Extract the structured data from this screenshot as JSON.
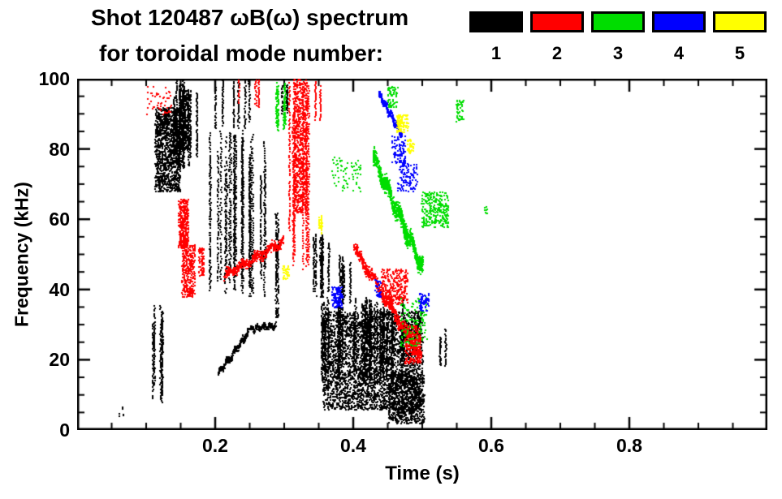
{
  "header": {
    "title_line1": "Shot 120487 ωB(ω) spectrum",
    "title_line2": "for toroidal mode number:"
  },
  "chart_data": {
    "type": "scatter",
    "title": "Shot 120487 ωB(ω) spectrum for toroidal mode number",
    "xlabel": "Time (s)",
    "ylabel": "Frequency (kHz)",
    "xlim": [
      0,
      1.0
    ],
    "ylim": [
      0,
      100
    ],
    "x_major_ticks": [
      0.2,
      0.4,
      0.6,
      0.8
    ],
    "x_tick_labels": [
      "0.2",
      "0.4",
      "0.6",
      "0.8"
    ],
    "x_minor_step": 0.05,
    "y_major_ticks": [
      0,
      20,
      40,
      60,
      80,
      100
    ],
    "y_tick_labels": [
      "0",
      "20",
      "40",
      "60",
      "80",
      "100"
    ],
    "y_minor_step": 5,
    "grid": false,
    "legend_position": "top-right",
    "series": [
      {
        "label": "1",
        "name": "toroidal mode n=1",
        "color": "#000000",
        "clusters": [
          {
            "type": "blob",
            "t": [
              0.058,
              0.066
            ],
            "f": [
              4,
              7
            ],
            "n": 6
          },
          {
            "type": "vstreaks",
            "t": [
              0.106,
              0.124
            ],
            "f": [
              8,
              36
            ],
            "lines": 5,
            "n": 300
          },
          {
            "type": "blob",
            "t": [
              0.112,
              0.148
            ],
            "f": [
              68,
              92
            ],
            "n": 1100
          },
          {
            "type": "vstreaks",
            "t": [
              0.138,
              0.178
            ],
            "f": [
              74,
              100
            ],
            "lines": 10,
            "n": 650
          },
          {
            "type": "blob",
            "t": [
              0.148,
              0.162
            ],
            "f": [
              80,
              97
            ],
            "n": 300
          },
          {
            "type": "vstreaks",
            "t": [
              0.19,
              0.272
            ],
            "f": [
              38,
              86
            ],
            "lines": 24,
            "n": 1600
          },
          {
            "type": "vstreaks",
            "t": [
              0.198,
              0.25
            ],
            "f": [
              86,
              100
            ],
            "lines": 6,
            "n": 220
          },
          {
            "type": "trace",
            "from": [
              0.203,
              16
            ],
            "to": [
              0.247,
              28
            ],
            "thickness": 3,
            "n": 260
          },
          {
            "type": "trace",
            "from": [
              0.248,
              29
            ],
            "to": [
              0.287,
              30
            ],
            "thickness": 2.5,
            "n": 180
          },
          {
            "type": "vstreaks",
            "t": [
              0.282,
              0.29
            ],
            "f": [
              30,
              66
            ],
            "lines": 2,
            "n": 140
          },
          {
            "type": "vstreaks",
            "t": [
              0.295,
              0.31
            ],
            "f": [
              90,
              100
            ],
            "lines": 3,
            "n": 80
          },
          {
            "type": "vstreaks",
            "t": [
              0.33,
              0.365
            ],
            "f": [
              38,
              56
            ],
            "lines": 7,
            "n": 300
          },
          {
            "type": "vstreaks",
            "t": [
              0.372,
              0.4
            ],
            "f": [
              36,
              50
            ],
            "lines": 5,
            "n": 160
          },
          {
            "type": "vstreaks",
            "t": [
              0.352,
              0.475
            ],
            "f": [
              14,
              38
            ],
            "lines": 30,
            "n": 1500
          },
          {
            "type": "blob",
            "t": [
              0.355,
              0.5
            ],
            "f": [
              6,
              34
            ],
            "n": 3200
          },
          {
            "type": "blob",
            "t": [
              0.45,
              0.502
            ],
            "f": [
              2,
              16
            ],
            "n": 700
          },
          {
            "type": "vstreaks",
            "t": [
              0.525,
              0.534
            ],
            "f": [
              17,
              29
            ],
            "lines": 2,
            "n": 70
          }
        ]
      },
      {
        "label": "2",
        "name": "toroidal mode n=2",
        "color": "#ff0000",
        "clusters": [
          {
            "type": "blob",
            "t": [
              0.1,
              0.136
            ],
            "f": [
              90,
              98
            ],
            "n": 50
          },
          {
            "type": "blob",
            "t": [
              0.146,
              0.16
            ],
            "f": [
              52,
              66
            ],
            "n": 320
          },
          {
            "type": "blob",
            "t": [
              0.151,
              0.17
            ],
            "f": [
              38,
              53
            ],
            "n": 320
          },
          {
            "type": "blob",
            "t": [
              0.175,
              0.183
            ],
            "f": [
              44,
              52
            ],
            "n": 70
          },
          {
            "type": "trace",
            "from": [
              0.212,
              44
            ],
            "to": [
              0.298,
              54
            ],
            "thickness": 4,
            "n": 480
          },
          {
            "type": "vstreaks",
            "t": [
              0.23,
              0.266
            ],
            "f": [
              92,
              100
            ],
            "lines": 3,
            "n": 60
          },
          {
            "type": "vstreaks",
            "t": [
              0.305,
              0.335
            ],
            "f": [
              45,
              100
            ],
            "lines": 8,
            "n": 600
          },
          {
            "type": "blob",
            "t": [
              0.313,
              0.332
            ],
            "f": [
              62,
              100
            ],
            "n": 700
          },
          {
            "type": "vstreaks",
            "t": [
              0.344,
              0.352
            ],
            "f": [
              88,
              100
            ],
            "lines": 2,
            "n": 50
          },
          {
            "type": "trace",
            "from": [
              0.4,
              52
            ],
            "to": [
              0.498,
              21
            ],
            "thickness": 5,
            "n": 700
          },
          {
            "type": "blob",
            "t": [
              0.44,
              0.478
            ],
            "f": [
              36,
              46
            ],
            "n": 260
          },
          {
            "type": "blob",
            "t": [
              0.474,
              0.497
            ],
            "f": [
              19,
              30
            ],
            "n": 260
          }
        ]
      },
      {
        "label": "3",
        "name": "toroidal mode n=3",
        "color": "#00dd00",
        "clusters": [
          {
            "type": "vstreaks",
            "t": [
              0.286,
              0.302
            ],
            "f": [
              85,
              100
            ],
            "lines": 4,
            "n": 170
          },
          {
            "type": "blob",
            "t": [
              0.368,
              0.41
            ],
            "f": [
              68,
              78
            ],
            "n": 70
          },
          {
            "type": "trace",
            "from": [
              0.428,
              78
            ],
            "to": [
              0.5,
              46
            ],
            "thickness": 7,
            "n": 1000
          },
          {
            "type": "blob",
            "t": [
              0.449,
              0.463
            ],
            "f": [
              92,
              98
            ],
            "n": 60
          },
          {
            "type": "blob",
            "t": [
              0.468,
              0.506
            ],
            "f": [
              24,
              38
            ],
            "n": 130
          },
          {
            "type": "blob",
            "t": [
              0.498,
              0.537
            ],
            "f": [
              58,
              68
            ],
            "n": 280
          },
          {
            "type": "blob",
            "t": [
              0.548,
              0.559
            ],
            "f": [
              88,
              94
            ],
            "n": 45
          },
          {
            "type": "blob",
            "t": [
              0.587,
              0.594
            ],
            "f": [
              61,
              64
            ],
            "n": 8
          }
        ]
      },
      {
        "label": "4",
        "name": "toroidal mode n=4",
        "color": "#0000ff",
        "clusters": [
          {
            "type": "blob",
            "t": [
              0.368,
              0.383
            ],
            "f": [
              35,
              41
            ],
            "n": 110
          },
          {
            "type": "blob",
            "t": [
              0.43,
              0.44
            ],
            "f": [
              38,
              43
            ],
            "n": 30
          },
          {
            "type": "trace",
            "from": [
              0.436,
              96
            ],
            "to": [
              0.47,
              84
            ],
            "thickness": 3,
            "n": 260
          },
          {
            "type": "blob",
            "t": [
              0.455,
              0.475
            ],
            "f": [
              76,
              84
            ],
            "n": 90
          },
          {
            "type": "blob",
            "t": [
              0.462,
              0.492
            ],
            "f": [
              68,
              76
            ],
            "n": 110
          },
          {
            "type": "blob",
            "t": [
              0.494,
              0.509
            ],
            "f": [
              34,
              39
            ],
            "n": 70
          }
        ]
      },
      {
        "label": "5",
        "name": "toroidal mode n=5",
        "color": "#ffff00",
        "clusters": [
          {
            "type": "blob",
            "t": [
              0.297,
              0.307
            ],
            "f": [
              43,
              47
            ],
            "n": 35
          },
          {
            "type": "vstreaks",
            "t": [
              0.347,
              0.354
            ],
            "f": [
              56,
              62
            ],
            "lines": 2,
            "n": 45
          },
          {
            "type": "blob",
            "t": [
              0.462,
              0.479
            ],
            "f": [
              85,
              90
            ],
            "n": 110
          },
          {
            "type": "blob",
            "t": [
              0.477,
              0.487
            ],
            "f": [
              79,
              83
            ],
            "n": 30
          }
        ]
      }
    ]
  }
}
